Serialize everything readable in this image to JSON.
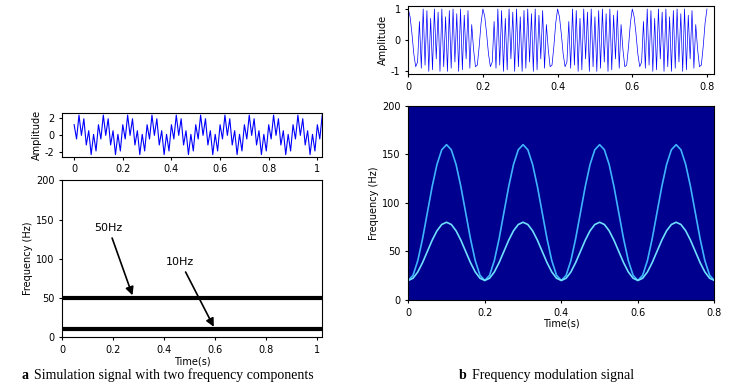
{
  "chart_data": [
    {
      "type": "line",
      "ylabel": "Amplitude",
      "xlim": [
        -0.05,
        1.02
      ],
      "xticks": [
        0,
        0.2,
        0.4,
        0.6,
        0.8,
        1
      ],
      "ylim": [
        -2.6,
        2.6
      ],
      "yticks": [
        -2,
        0,
        2
      ],
      "series": [
        {
          "color": "#0000ff",
          "x": [
            0,
            0.01,
            0.02,
            0.03,
            0.04,
            0.05,
            0.06,
            0.07,
            0.08,
            0.09,
            0.1,
            0.11,
            0.12,
            0.13,
            0.14,
            0.15,
            0.16,
            0.17,
            0.18,
            0.19,
            0.2,
            0.21,
            0.22,
            0.23,
            0.24,
            0.25,
            0.26,
            0.27,
            0.28,
            0.29,
            0.3,
            0.31,
            0.32,
            0.33,
            0.34,
            0.35,
            0.36,
            0.37,
            0.38,
            0.39,
            0.4,
            0.41,
            0.42,
            0.43,
            0.44,
            0.45,
            0.46,
            0.47,
            0.48,
            0.49,
            0.5,
            0.51,
            0.52,
            0.53,
            0.54,
            0.55,
            0.56,
            0.57,
            0.58,
            0.59,
            0.6,
            0.61,
            0.62,
            0.63,
            0.64,
            0.65,
            0.66,
            0.67,
            0.68,
            0.69,
            0.7,
            0.71,
            0.72,
            0.73,
            0.74,
            0.75,
            0.76,
            0.77,
            0.78,
            0.79,
            0.8,
            0.81,
            0.82,
            0.83,
            0.84,
            0.85,
            0.86,
            0.87,
            0.88,
            0.89,
            0.9,
            0.91,
            0.92,
            0.93,
            0.94,
            0.95,
            0.96,
            0.97,
            0.98,
            0.99,
            1,
            1.01,
            1.02
          ],
          "values": [
            1.2,
            -0.49,
            2.34,
            -0.06,
            1.91,
            -1.2,
            0.49,
            -2.34,
            0.06,
            -1.91,
            1.2,
            -0.49,
            2.34,
            -0.06,
            1.91,
            -1.2,
            0.49,
            -2.34,
            0.06,
            -1.91,
            1.2,
            -0.49,
            2.34,
            -0.06,
            1.91,
            -1.2,
            0.49,
            -2.34,
            0.06,
            -1.91,
            1.2,
            -0.49,
            2.34,
            -0.06,
            1.91,
            -1.2,
            0.49,
            -2.34,
            0.06,
            -1.91,
            1.2,
            -0.49,
            2.34,
            -0.06,
            1.91,
            -1.2,
            0.49,
            -2.34,
            0.06,
            -1.91,
            1.2,
            -0.49,
            2.34,
            -0.06,
            1.91,
            -1.2,
            0.49,
            -2.34,
            0.06,
            -1.91,
            1.2,
            -0.49,
            2.34,
            -0.06,
            1.91,
            -1.2,
            0.49,
            -2.34,
            0.06,
            -1.91,
            1.2,
            -0.49,
            2.34,
            -0.06,
            1.91,
            -1.2,
            0.49,
            -2.34,
            0.06,
            -1.91,
            1.2,
            -0.49,
            2.34,
            -0.06,
            1.91,
            -1.2,
            0.49,
            -2.34,
            0.06,
            -1.91,
            1.2,
            -0.49,
            2.34,
            -0.06,
            1.91,
            -1.2,
            0.49,
            -2.34,
            0.06,
            -1.91,
            1.2,
            -0.49,
            2.34
          ]
        }
      ]
    },
    {
      "type": "line",
      "xlabel": "Time(s)",
      "ylabel": "Frequency (Hz)",
      "xlim": [
        0,
        1.02
      ],
      "xticks": [
        0,
        0.2,
        0.4,
        0.6,
        0.8,
        1
      ],
      "ylim": [
        0,
        200
      ],
      "yticks": [
        0,
        50,
        100,
        150,
        200
      ],
      "series": [
        {
          "color": "#000000",
          "x": [
            0,
            1.02
          ],
          "values": [
            50,
            50
          ]
        },
        {
          "color": "#000000",
          "x": [
            0,
            1.02
          ],
          "values": [
            10,
            10
          ]
        }
      ],
      "annotations": [
        {
          "text": "50Hz",
          "x": 0.28,
          "y": 50
        },
        {
          "text": "10Hz",
          "x": 0.6,
          "y": 10
        }
      ]
    },
    {
      "type": "line",
      "ylabel": "Amplitude",
      "xlim": [
        0,
        0.82
      ],
      "xticks": [
        0,
        0.2,
        0.4,
        0.6,
        0.8
      ],
      "ylim": [
        -1.1,
        1.1
      ],
      "yticks": [
        -1,
        0,
        1
      ],
      "series": [
        {
          "color": "#0000ff",
          "x": [
            0,
            0.005,
            0.01,
            0.015,
            0.02,
            0.025,
            0.03,
            0.035,
            0.04,
            0.045,
            0.05,
            0.055,
            0.06,
            0.065,
            0.07,
            0.075,
            0.08,
            0.085,
            0.09,
            0.095,
            0.1,
            0.105,
            0.11,
            0.115,
            0.12,
            0.125,
            0.13,
            0.135,
            0.14,
            0.145,
            0.15,
            0.155,
            0.16,
            0.165,
            0.17,
            0.175,
            0.18,
            0.185,
            0.19,
            0.195,
            0.2,
            0.205,
            0.21,
            0.215,
            0.22,
            0.225,
            0.23,
            0.235,
            0.24,
            0.245,
            0.25,
            0.255,
            0.26,
            0.265,
            0.27,
            0.275,
            0.28,
            0.285,
            0.29,
            0.295,
            0.3,
            0.305,
            0.31,
            0.315,
            0.32,
            0.325,
            0.33,
            0.335,
            0.34,
            0.345,
            0.35,
            0.355,
            0.36,
            0.365,
            0.37,
            0.375,
            0.38,
            0.385,
            0.39,
            0.395,
            0.4,
            0.405,
            0.41,
            0.415,
            0.42,
            0.425,
            0.43,
            0.435,
            0.44,
            0.445,
            0.45,
            0.455,
            0.46,
            0.465,
            0.47,
            0.475,
            0.48,
            0.485,
            0.49,
            0.495,
            0.5,
            0.505,
            0.51,
            0.515,
            0.52,
            0.525,
            0.53,
            0.535,
            0.54,
            0.545,
            0.55,
            0.555,
            0.56,
            0.565,
            0.57,
            0.575,
            0.58,
            0.585,
            0.59,
            0.595,
            0.6,
            0.605,
            0.61,
            0.615,
            0.62,
            0.625,
            0.63,
            0.635,
            0.64,
            0.645,
            0.65,
            0.655,
            0.66,
            0.665,
            0.67,
            0.675,
            0.68,
            0.685,
            0.69,
            0.695,
            0.7,
            0.705,
            0.71,
            0.715,
            0.72,
            0.725,
            0.73,
            0.735,
            0.74,
            0.745,
            0.75,
            0.755,
            0.76,
            0.765,
            0.77,
            0.775,
            0.78,
            0.785,
            0.79,
            0.795,
            0.8
          ],
          "values": [
            1,
            0.75,
            0.2,
            -0.45,
            -0.85,
            -0.7,
            0.6,
            -0.9,
            1,
            -0.8,
            0.95,
            -1,
            0.7,
            -0.95,
            1,
            -0.6,
            0.9,
            -1,
            1,
            -0.85,
            0.75,
            -1,
            0.95,
            -0.9,
            1,
            -0.7,
            0.85,
            -1,
            1,
            -0.95,
            0.8,
            -0.6,
            0.95,
            -0.9,
            0.5,
            -0.3,
            -0.85,
            -0.8,
            -0.2,
            0.55,
            1,
            0.75,
            0.2,
            -0.45,
            -0.85,
            -0.7,
            0.6,
            -0.9,
            1,
            -0.8,
            0.95,
            -1,
            0.7,
            -0.95,
            1,
            -0.6,
            0.9,
            -1,
            1,
            -0.85,
            0.75,
            -1,
            0.95,
            -0.9,
            1,
            -0.7,
            0.85,
            -1,
            1,
            -0.95,
            0.8,
            -0.6,
            0.95,
            -0.9,
            0.5,
            -0.3,
            -0.85,
            -0.8,
            -0.2,
            0.55,
            1,
            0.75,
            0.2,
            -0.45,
            -0.85,
            -0.7,
            0.6,
            -0.9,
            1,
            -0.8,
            0.95,
            -1,
            0.7,
            -0.95,
            1,
            -0.6,
            0.9,
            -1,
            1,
            -0.85,
            0.75,
            -1,
            0.95,
            -0.9,
            1,
            -0.7,
            0.85,
            -1,
            1,
            -0.95,
            0.8,
            -0.6,
            0.95,
            -0.9,
            0.5,
            -0.3,
            -0.85,
            -0.8,
            -0.2,
            0.55,
            1,
            0.75,
            0.2,
            -0.45,
            -0.85,
            -0.7,
            0.6,
            -0.9,
            1,
            -0.8,
            0.95,
            -1,
            0.7,
            -0.95,
            1,
            -0.6,
            0.9,
            -1,
            1,
            -0.85,
            0.75,
            -1,
            0.95,
            -0.9,
            1,
            -0.7,
            0.85,
            -1,
            1,
            -0.95,
            0.8,
            -0.6,
            0.95,
            -0.9,
            0.5,
            -0.3,
            -0.85,
            -0.8,
            -0.2,
            0.55,
            1
          ]
        }
      ]
    },
    {
      "type": "line",
      "xlabel": "Time(s)",
      "ylabel": "Frequency (Hz)",
      "xlim": [
        0,
        0.8
      ],
      "xticks": [
        0,
        0.2,
        0.4,
        0.6,
        0.8
      ],
      "ylim": [
        0,
        200
      ],
      "yticks": [
        0,
        50,
        100,
        150,
        200
      ],
      "series": [
        {
          "color": "#3fb4ff",
          "x": [
            0,
            0.0125,
            0.025,
            0.0375,
            0.05,
            0.0625,
            0.075,
            0.0875,
            0.1,
            0.1125,
            0.125,
            0.1375,
            0.15,
            0.1625,
            0.175,
            0.1875,
            0.2,
            0.2125,
            0.225,
            0.2375,
            0.25,
            0.2625,
            0.275,
            0.2875,
            0.3,
            0.3125,
            0.325,
            0.3375,
            0.35,
            0.3625,
            0.375,
            0.3875,
            0.4,
            0.4125,
            0.425,
            0.4375,
            0.45,
            0.4625,
            0.475,
            0.4875,
            0.5,
            0.5125,
            0.525,
            0.5375,
            0.55,
            0.5625,
            0.575,
            0.5875,
            0.6,
            0.6125,
            0.625,
            0.6375,
            0.65,
            0.6625,
            0.675,
            0.6875,
            0.7,
            0.7125,
            0.725,
            0.7375,
            0.75,
            0.7625,
            0.775,
            0.7875,
            0.8
          ],
          "values": [
            20,
            25.3,
            40.5,
            63.2,
            90,
            116.8,
            139.5,
            154.7,
            160,
            154.7,
            139.5,
            116.8,
            90,
            63.2,
            40.5,
            25.3,
            20,
            25.3,
            40.5,
            63.2,
            90,
            116.8,
            139.5,
            154.7,
            160,
            154.7,
            139.5,
            116.8,
            90,
            63.2,
            40.5,
            25.3,
            20,
            25.3,
            40.5,
            63.2,
            90,
            116.8,
            139.5,
            154.7,
            160,
            154.7,
            139.5,
            116.8,
            90,
            63.2,
            40.5,
            25.3,
            20,
            25.3,
            40.5,
            63.2,
            90,
            116.8,
            139.5,
            154.7,
            160,
            154.7,
            139.5,
            116.8,
            90,
            63.2,
            40.5,
            25.3,
            20
          ]
        },
        {
          "color": "#6fe0ff",
          "x": [
            0,
            0.0125,
            0.025,
            0.0375,
            0.05,
            0.0625,
            0.075,
            0.0875,
            0.1,
            0.1125,
            0.125,
            0.1375,
            0.15,
            0.1625,
            0.175,
            0.1875,
            0.2,
            0.2125,
            0.225,
            0.2375,
            0.25,
            0.2625,
            0.275,
            0.2875,
            0.3,
            0.3125,
            0.325,
            0.3375,
            0.35,
            0.3625,
            0.375,
            0.3875,
            0.4,
            0.4125,
            0.425,
            0.4375,
            0.45,
            0.4625,
            0.475,
            0.4875,
            0.5,
            0.5125,
            0.525,
            0.5375,
            0.55,
            0.5625,
            0.575,
            0.5875,
            0.6,
            0.6125,
            0.625,
            0.6375,
            0.65,
            0.6625,
            0.675,
            0.6875,
            0.7,
            0.7125,
            0.725,
            0.7375,
            0.75,
            0.7625,
            0.775,
            0.7875,
            0.8
          ],
          "values": [
            20,
            22.3,
            28.8,
            38.5,
            50,
            61.5,
            71.2,
            77.7,
            80,
            77.7,
            71.2,
            61.5,
            50,
            38.5,
            28.8,
            22.3,
            20,
            22.3,
            28.8,
            38.5,
            50,
            61.5,
            71.2,
            77.7,
            80,
            77.7,
            71.2,
            61.5,
            50,
            38.5,
            28.8,
            22.3,
            20,
            22.3,
            28.8,
            38.5,
            50,
            61.5,
            71.2,
            77.7,
            80,
            77.7,
            71.2,
            61.5,
            50,
            38.5,
            28.8,
            22.3,
            20,
            22.3,
            28.8,
            38.5,
            50,
            61.5,
            71.2,
            77.7,
            80,
            77.7,
            71.2,
            61.5,
            50,
            38.5,
            28.8,
            22.3,
            20
          ]
        }
      ]
    }
  ],
  "captions": [
    {
      "label": "a",
      "text": "Simulation signal with two frequency components"
    },
    {
      "label": "b",
      "text": "Frequency modulation signal"
    }
  ]
}
